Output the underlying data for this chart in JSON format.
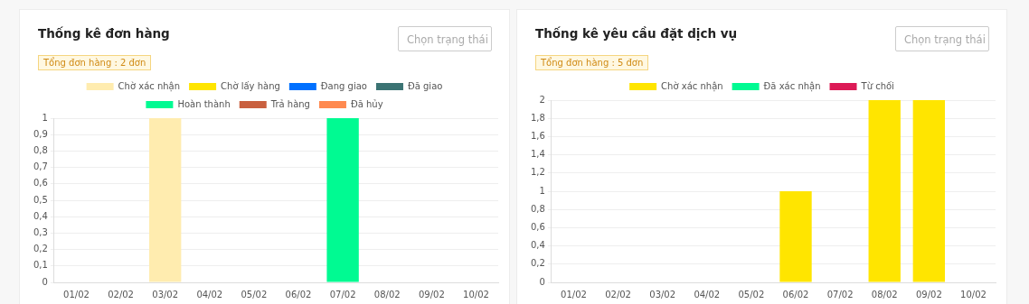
{
  "chart_data": [
    {
      "type": "bar",
      "title": "Thống kê đơn hàng",
      "annotations": [
        "Tổng đơn hàng : 2 đơn",
        "Chọn trạng thái"
      ],
      "categories": [
        "01/02",
        "02/02",
        "03/02",
        "04/02",
        "05/02",
        "06/02",
        "07/02",
        "08/02",
        "09/02",
        "10/02"
      ],
      "stacked": true,
      "series": [
        {
          "name": "Chờ xác nhận",
          "color": "#ffecaf",
          "values": [
            0,
            0,
            1,
            0,
            0,
            0,
            0,
            0,
            0,
            0
          ]
        },
        {
          "name": "Chờ lấy hàng",
          "color": "#ffe500",
          "values": [
            0,
            0,
            0,
            0,
            0,
            0,
            0,
            0,
            0,
            0
          ]
        },
        {
          "name": "Đang giao",
          "color": "#0070ff",
          "values": [
            0,
            0,
            0,
            0,
            0,
            0,
            0,
            0,
            0,
            0
          ]
        },
        {
          "name": "Đã giao",
          "color": "#3b7373",
          "values": [
            0,
            0,
            0,
            0,
            0,
            0,
            0,
            0,
            0,
            0
          ]
        },
        {
          "name": "Hoàn thành",
          "color": "#00fa92",
          "values": [
            0,
            0,
            0,
            0,
            0,
            0,
            1,
            0,
            0,
            0
          ]
        },
        {
          "name": "Trả hàng",
          "color": "#c9603f",
          "values": [
            0,
            0,
            0,
            0,
            0,
            0,
            0,
            0,
            0,
            0
          ]
        },
        {
          "name": "Đã hủy",
          "color": "#ff8a50",
          "values": [
            0,
            0,
            0,
            0,
            0,
            0,
            0,
            0,
            0,
            0
          ]
        }
      ],
      "ylim": [
        0,
        1
      ],
      "yticks": [
        0,
        {
          "value": 0.1,
          "label": "0,1"
        },
        {
          "value": 0.2,
          "label": "0,2"
        },
        {
          "value": 0.3,
          "label": "0,3"
        },
        {
          "value": 0.4,
          "label": "0,4"
        },
        {
          "value": 0.5,
          "label": "0,5"
        },
        {
          "value": 0.6,
          "label": "0,6"
        },
        {
          "value": 0.7,
          "label": "0,7"
        },
        {
          "value": 0.8,
          "label": "0,8"
        },
        {
          "value": 0.9,
          "label": "0,9"
        },
        1
      ],
      "grid": "y",
      "legend": "top"
    },
    {
      "type": "bar",
      "title": "Thống kê yêu cầu đặt dịch vụ",
      "annotations": [
        "Tổng đơn hàng : 5 đơn",
        "Chọn trạng thái"
      ],
      "categories": [
        "01/02",
        "02/02",
        "03/02",
        "04/02",
        "05/02",
        "06/02",
        "07/02",
        "08/02",
        "09/02",
        "10/02"
      ],
      "stacked": true,
      "series": [
        {
          "name": "Chờ xác nhận",
          "color": "#ffe500",
          "values": [
            0,
            0,
            0,
            0,
            0,
            1,
            0,
            2,
            2,
            0
          ]
        },
        {
          "name": "Đã xác nhận",
          "color": "#00fa92",
          "values": [
            0,
            0,
            0,
            0,
            0,
            0,
            0,
            0,
            0,
            0
          ]
        },
        {
          "name": "Từ chối",
          "color": "#dc1a56",
          "values": [
            0,
            0,
            0,
            0,
            0,
            0,
            0,
            0,
            0,
            0
          ]
        }
      ],
      "ylim": [
        0,
        2
      ],
      "yticks": [
        0,
        {
          "value": 0.2,
          "label": "0,2"
        },
        {
          "value": 0.4,
          "label": "0,4"
        },
        {
          "value": 0.6,
          "label": "0,6"
        },
        {
          "value": 0.8,
          "label": "0,8"
        },
        1,
        {
          "value": 1.2,
          "label": "1,2"
        },
        {
          "value": 1.4,
          "label": "1,4"
        },
        {
          "value": 1.6,
          "label": "1,6"
        },
        {
          "value": 1.8,
          "label": "1,8"
        },
        2
      ],
      "grid": "y",
      "legend": "top"
    }
  ]
}
